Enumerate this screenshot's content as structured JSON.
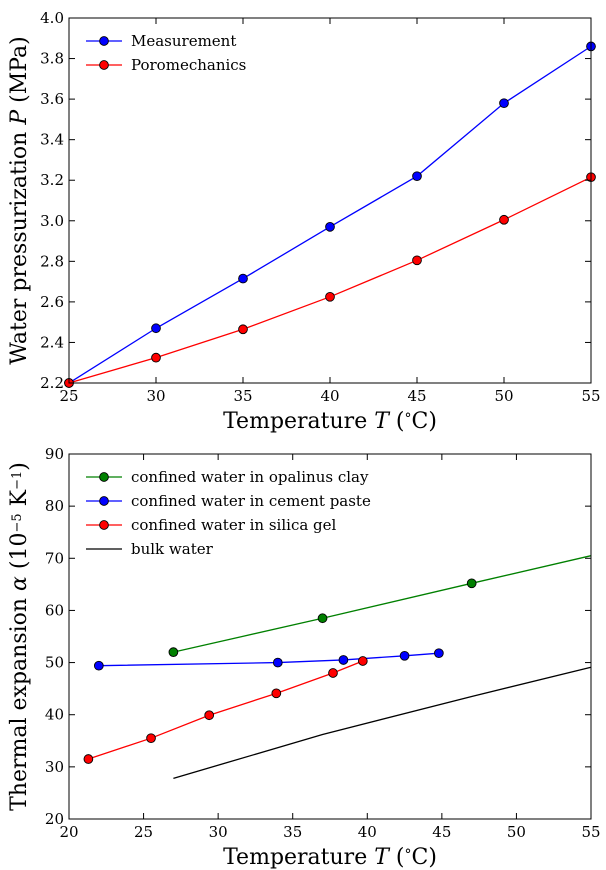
{
  "chart_data": [
    {
      "type": "line",
      "xlabel": "Temperature T (°C)",
      "xlabel_parts": [
        "Temperature ",
        "T",
        " (",
        "°",
        "C)"
      ],
      "ylabel": "Water pressurization P (MPa)",
      "ylabel_parts": [
        "Water pressurization ",
        "P",
        " (MPa)"
      ],
      "xlim": [
        25,
        55
      ],
      "ylim": [
        2.2,
        4.0
      ],
      "x_ticks": [
        25,
        30,
        35,
        40,
        45,
        50,
        55
      ],
      "y_ticks": [
        2.2,
        2.4,
        2.6,
        2.8,
        3.0,
        3.2,
        3.4,
        3.6,
        3.8,
        4.0
      ],
      "grid": false,
      "legend_position": "top-left",
      "series": [
        {
          "name": "Measurement",
          "color": "#0000ff",
          "marker": "circle",
          "x": [
            25,
            30,
            35,
            40,
            45,
            50,
            55
          ],
          "y": [
            2.2,
            2.47,
            2.715,
            2.97,
            3.22,
            3.58,
            3.86
          ]
        },
        {
          "name": "Poromechanics",
          "color": "#ff0000",
          "marker": "circle",
          "x": [
            25,
            30,
            35,
            40,
            45,
            50,
            55
          ],
          "y": [
            2.2,
            2.325,
            2.465,
            2.625,
            2.805,
            3.005,
            3.215
          ]
        }
      ]
    },
    {
      "type": "line",
      "xlabel": "Temperature T (°C)",
      "xlabel_parts": [
        "Temperature ",
        "T",
        " (",
        "°",
        "C)"
      ],
      "ylabel": "Thermal expansion α (10⁻⁵ K⁻¹)",
      "ylabel_parts": [
        "Thermal expansion ",
        "α",
        " (10",
        "−5",
        " K",
        "−1",
        ")"
      ],
      "xlim": [
        20,
        55
      ],
      "ylim": [
        20,
        90
      ],
      "x_ticks": [
        20,
        25,
        30,
        35,
        40,
        45,
        50,
        55
      ],
      "y_ticks": [
        20,
        30,
        40,
        50,
        60,
        70,
        80,
        90
      ],
      "grid": false,
      "legend_position": "top-left",
      "series": [
        {
          "name": "confined water in opalinus clay",
          "color": "#008000",
          "marker": "circle",
          "x": [
            27,
            37,
            47,
            55
          ],
          "y": [
            52,
            58.5,
            65.2,
            70.5
          ],
          "marked_points": [
            0,
            1,
            2
          ]
        },
        {
          "name": "confined water in cement paste",
          "color": "#0000ff",
          "marker": "circle",
          "x": [
            22,
            34,
            38.4,
            42.5,
            44.8
          ],
          "y": [
            49.4,
            50,
            50.5,
            51.3,
            51.8
          ],
          "marked_points": [
            0,
            1,
            2,
            3,
            4
          ]
        },
        {
          "name": "confined water in silica gel",
          "color": "#ff0000",
          "marker": "circle",
          "x": [
            21.3,
            25.5,
            29.4,
            33.9,
            37.7,
            39.7
          ],
          "y": [
            31.5,
            35.5,
            39.9,
            44.1,
            48,
            50.3
          ],
          "marked_points": [
            0,
            1,
            2,
            3,
            4,
            5
          ]
        },
        {
          "name": "bulk water",
          "color": "#000000",
          "marker": "none",
          "x": [
            27,
            37,
            47,
            55
          ],
          "y": [
            27.8,
            36.2,
            43.5,
            49.1
          ],
          "marked_points": []
        }
      ]
    }
  ]
}
